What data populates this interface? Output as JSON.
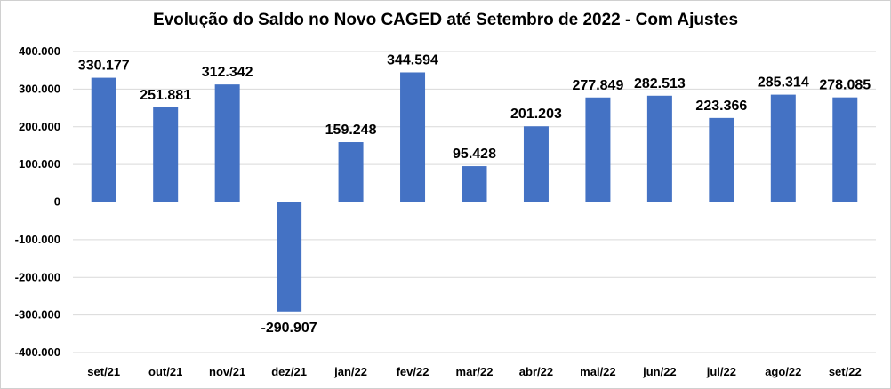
{
  "chart_data": {
    "type": "bar",
    "title": "Evolução do Saldo no Novo CAGED até Setembro de 2022 - Com Ajustes",
    "xlabel": "",
    "ylabel": "",
    "ylim": [
      -400000,
      400000
    ],
    "yticks": [
      "400.000",
      "300.000",
      "200.000",
      "100.000",
      "0",
      "-100.000",
      "-200.000",
      "-300.000",
      "-400.000"
    ],
    "categories": [
      "set/21",
      "out/21",
      "nov/21",
      "dez/21",
      "jan/22",
      "fev/22",
      "mar/22",
      "abr/22",
      "mai/22",
      "jun/22",
      "jul/22",
      "ago/22",
      "set/22"
    ],
    "values": [
      330177,
      251881,
      312342,
      -290907,
      159248,
      344594,
      95428,
      201203,
      277849,
      282513,
      223366,
      285314,
      278085
    ],
    "value_labels": [
      "330.177",
      "251.881",
      "312.342",
      "-290.907",
      "159.248",
      "344.594",
      "95.428",
      "201.203",
      "277.849",
      "282.513",
      "223.366",
      "285.314",
      "278.085"
    ],
    "grid": true,
    "bar_color": "#4472C4",
    "grid_color": "#d9d9d9"
  }
}
